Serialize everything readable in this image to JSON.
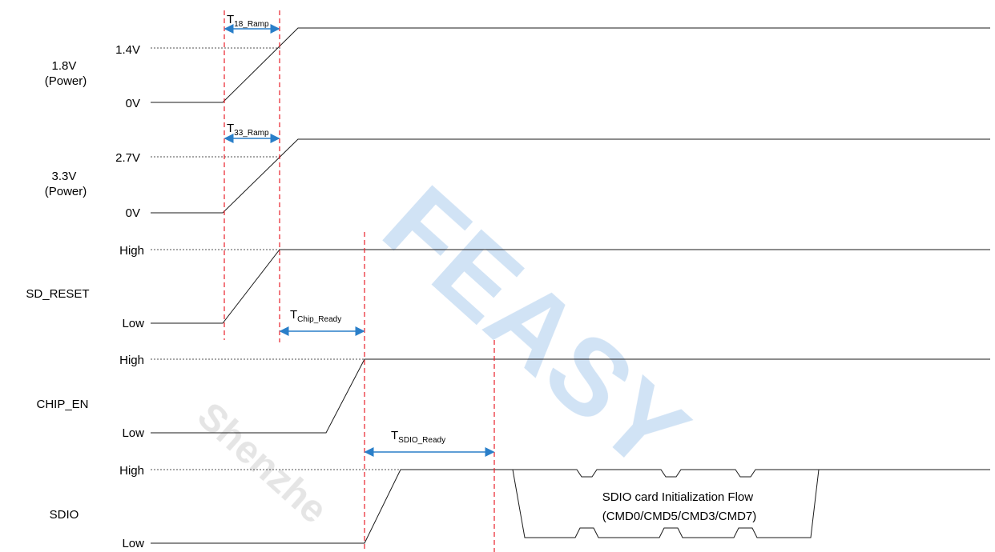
{
  "colors": {
    "waveform": "#1a1a1a",
    "marker": "#e8202a",
    "timing_arrow": "#2a7fc9",
    "watermark_blue": "#2f7fd0",
    "watermark_grey": "#b8b8b8"
  },
  "watermarks": {
    "big": "FEASY",
    "small": "Shenzhe"
  },
  "signals": [
    {
      "name": "1.8V\n(Power)",
      "line1": "1.8V",
      "line2": "(Power)",
      "high_label": "1.4V",
      "low_label": "0V"
    },
    {
      "name": "3.3V\n(Power)",
      "line1": "3.3V",
      "line2": "(Power)",
      "high_label": "2.7V",
      "low_label": "0V"
    },
    {
      "name": "SD_RESET",
      "line1": "SD_RESET",
      "line2": "",
      "high_label": "High",
      "low_label": "Low"
    },
    {
      "name": "CHIP_EN",
      "line1": "CHIP_EN",
      "line2": "",
      "high_label": "High",
      "low_label": "Low"
    },
    {
      "name": "SDIO",
      "line1": "SDIO",
      "line2": "",
      "high_label": "High",
      "low_label": "Low"
    }
  ],
  "timings": [
    {
      "main": "T",
      "sub": "18_Ramp"
    },
    {
      "main": "T",
      "sub": "33_Ramp"
    },
    {
      "main": "T",
      "sub": "Chip_Ready"
    },
    {
      "main": "T",
      "sub": "SDIO_Ready"
    }
  ],
  "sdio_note": {
    "line1": "SDIO card Initialization Flow",
    "line2": "(CMD0/CMD5/CMD3/CMD7)"
  }
}
